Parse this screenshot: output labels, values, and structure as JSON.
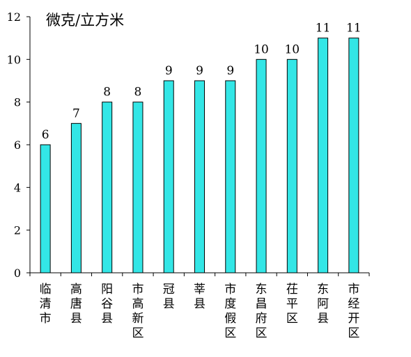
{
  "chart_data": {
    "type": "bar",
    "unit_label": "微克/立方米",
    "categories": [
      "临清市",
      "高唐县",
      "阳谷县",
      "市高新区",
      "冠县",
      "莘县",
      "市度假区",
      "东昌府区",
      "茌平区",
      "东阿县",
      "市经开区"
    ],
    "values": [
      6,
      7,
      8,
      8,
      9,
      9,
      9,
      10,
      10,
      11,
      11
    ],
    "data_labels": [
      "6",
      "7",
      "8",
      "8",
      "9",
      "9",
      "9",
      "10",
      "10",
      "11",
      "11"
    ],
    "y_ticks": [
      "0",
      "2",
      "4",
      "6",
      "8",
      "10",
      "12"
    ],
    "ylim": [
      0,
      12
    ],
    "grid": false,
    "legend": "none",
    "bar_color": "#33E6E6",
    "bar_stroke": "#000000"
  }
}
